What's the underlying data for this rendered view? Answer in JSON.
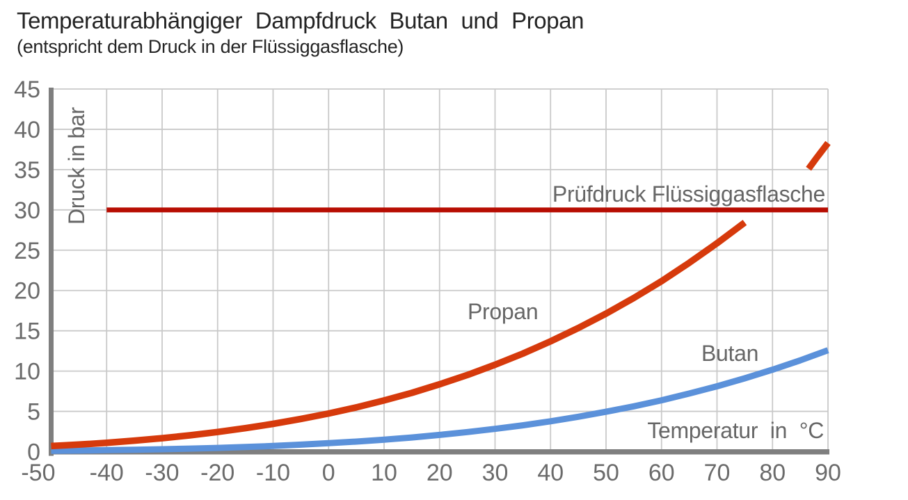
{
  "header": {
    "title": "Temperaturabhängiger Dampfdruck Butan und Propan",
    "subtitle": "(entspricht dem Druck in der Flüssiggasflasche)"
  },
  "chart_data": {
    "type": "line",
    "title": "Temperaturabhängiger Dampfdruck Butan und Propan",
    "subtitle": "(entspricht dem Druck in der Flüssiggasflasche)",
    "xlabel": "Temperatur in °C",
    "ylabel": "Druck in bar",
    "xlim": [
      -50,
      90
    ],
    "ylim": [
      0,
      45
    ],
    "x_ticks": [
      -50,
      -40,
      -30,
      -20,
      -10,
      0,
      10,
      20,
      30,
      40,
      50,
      60,
      70,
      80,
      90
    ],
    "y_ticks": [
      0,
      5,
      10,
      15,
      20,
      25,
      30,
      35,
      40,
      45
    ],
    "grid": true,
    "legend_position": "inline-labels",
    "colors": {
      "grid": "#c9c9c9",
      "axis": "#7f7f7f",
      "tick_text": "#6b6b6b",
      "annotation_text": "#666666"
    },
    "series": [
      {
        "name": "Propan",
        "color": "#d63a0c",
        "stroke_width": 9.5,
        "unit": "bar",
        "segments": [
          [
            [
              -50,
              0.7
            ],
            [
              -45,
              0.88
            ],
            [
              -40,
              1.1
            ],
            [
              -35,
              1.37
            ],
            [
              -30,
              1.67
            ],
            [
              -25,
              2.03
            ],
            [
              -20,
              2.44
            ],
            [
              -15,
              2.92
            ],
            [
              -10,
              3.45
            ],
            [
              -5,
              4.06
            ],
            [
              0,
              4.74
            ],
            [
              5,
              5.5
            ],
            [
              10,
              6.36
            ],
            [
              15,
              7.3
            ],
            [
              20,
              8.36
            ],
            [
              25,
              9.51
            ],
            [
              30,
              10.79
            ],
            [
              35,
              12.17
            ],
            [
              40,
              13.69
            ],
            [
              45,
              15.34
            ],
            [
              50,
              17.13
            ],
            [
              55,
              19.07
            ],
            [
              60,
              21.16
            ],
            [
              65,
              23.44
            ],
            [
              70,
              25.86
            ],
            [
              75,
              28.44
            ]
          ],
          [
            [
              86.5,
              35.1
            ],
            [
              88,
              36.5
            ],
            [
              90,
              38.3
            ]
          ]
        ]
      },
      {
        "name": "Butan",
        "color": "#5b91da",
        "stroke_width": 9,
        "unit": "bar",
        "segments": [
          [
            [
              -50,
              0.11
            ],
            [
              -45,
              0.14
            ],
            [
              -40,
              0.19
            ],
            [
              -35,
              0.24
            ],
            [
              -30,
              0.3
            ],
            [
              -25,
              0.38
            ],
            [
              -20,
              0.47
            ],
            [
              -15,
              0.58
            ],
            [
              -10,
              0.71
            ],
            [
              -5,
              0.87
            ],
            [
              0,
              1.05
            ],
            [
              5,
              1.25
            ],
            [
              10,
              1.49
            ],
            [
              15,
              1.76
            ],
            [
              20,
              2.08
            ],
            [
              25,
              2.43
            ],
            [
              30,
              2.83
            ],
            [
              35,
              3.27
            ],
            [
              40,
              3.77
            ],
            [
              45,
              4.33
            ],
            [
              50,
              4.95
            ],
            [
              55,
              5.63
            ],
            [
              60,
              6.38
            ],
            [
              65,
              7.21
            ],
            [
              70,
              8.11
            ],
            [
              75,
              9.1
            ],
            [
              80,
              10.17
            ],
            [
              85,
              11.33
            ],
            [
              90,
              12.59
            ]
          ]
        ]
      }
    ],
    "reference_line": {
      "label": "Prüfdruck Flüssiggasflasche",
      "y": 30,
      "x_start": -40,
      "x_end": 90,
      "color": "#b70d02",
      "stroke_width": 7
    },
    "annotations": [
      {
        "text": "Propan",
        "series": "Propan"
      },
      {
        "text": "Butan",
        "series": "Butan"
      }
    ]
  }
}
